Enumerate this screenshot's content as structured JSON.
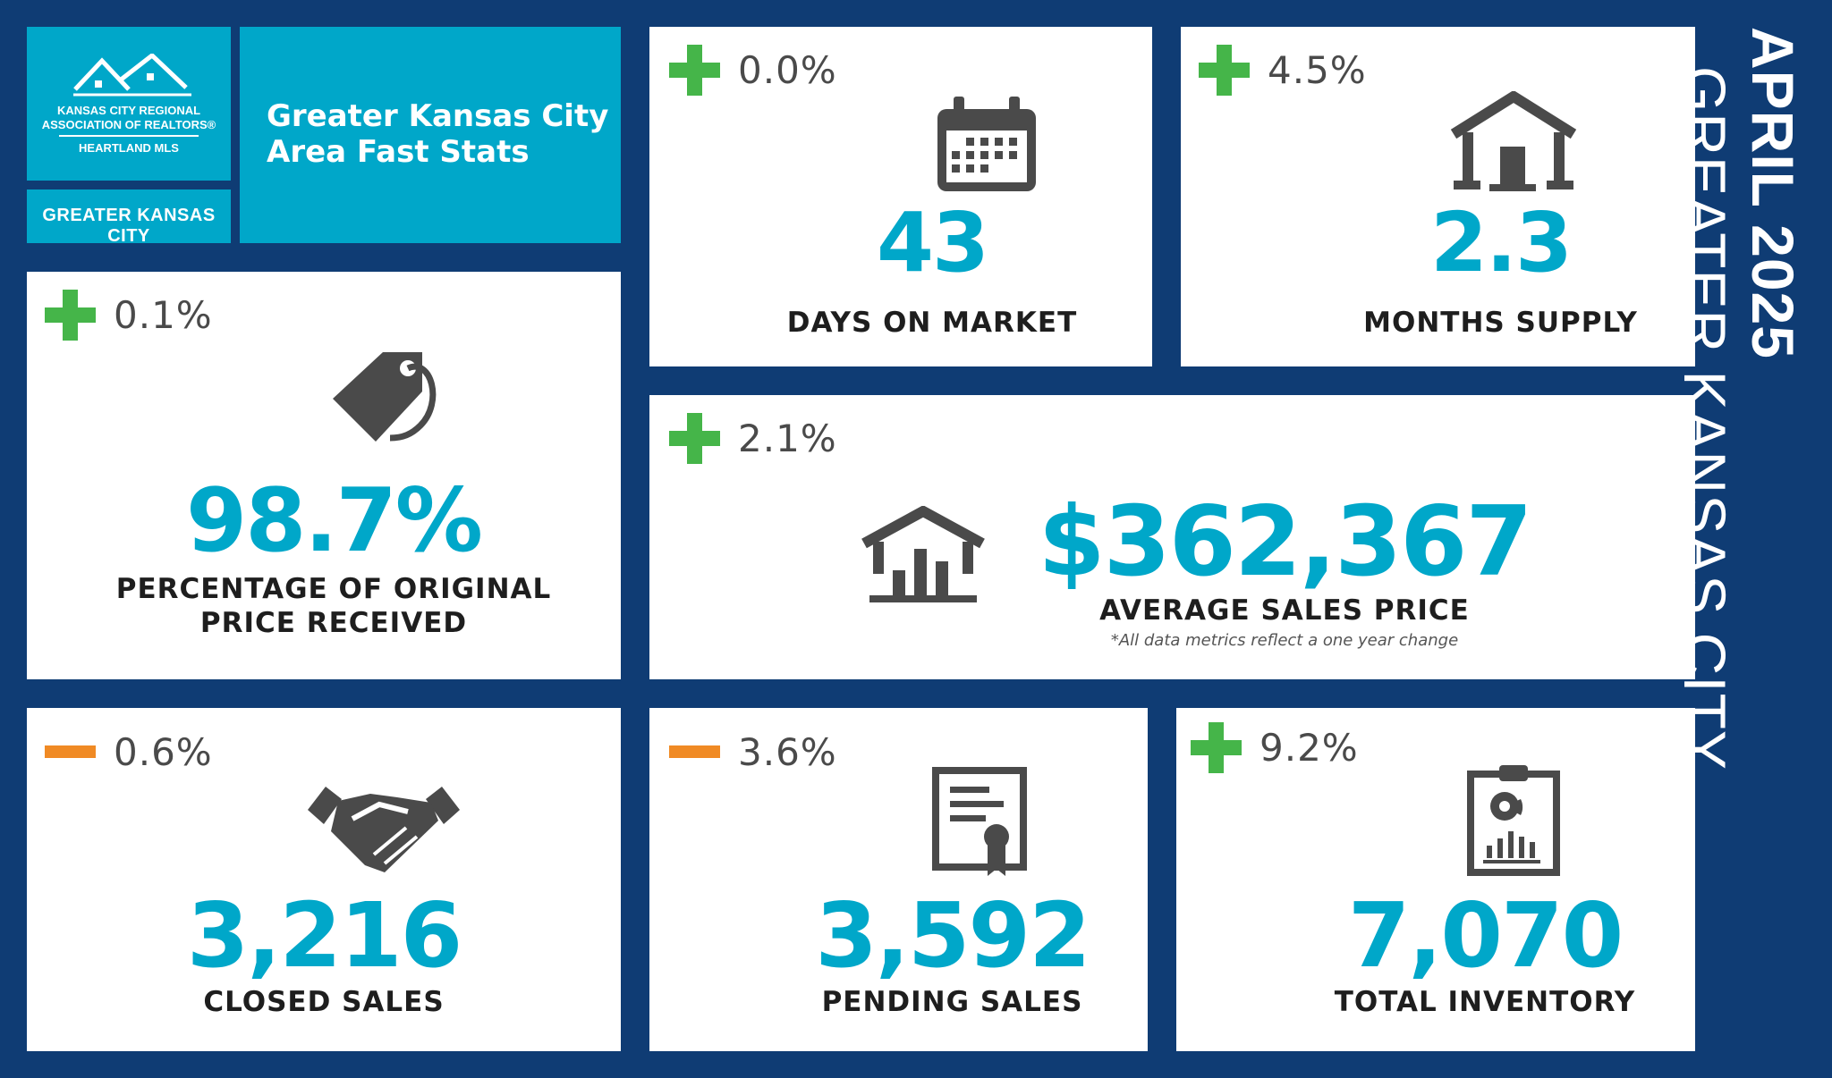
{
  "header": {
    "logo": {
      "line1": "KANSAS CITY REGIONAL",
      "line2": "ASSOCIATION OF REALTORS®",
      "line3": "HEARTLAND MLS"
    },
    "region_tab": "GREATER KANSAS CITY",
    "title_line1": "Greater Kansas City",
    "title_line2": "Area Fast Stats"
  },
  "side_title": {
    "bold": "APRIL 2025",
    "light": "GREATER KANSAS CITY"
  },
  "colors": {
    "navy": "#0f3c74",
    "teal": "#00a7c9",
    "plus": "#45b549",
    "minus": "#f08a24"
  },
  "stats": {
    "days_on_market": {
      "sign": "plus",
      "change": "0.0%",
      "value": "43",
      "label": "DAYS ON MARKET",
      "icon": "calendar-icon"
    },
    "months_supply": {
      "sign": "plus",
      "change": "4.5%",
      "value": "2.3",
      "label": "MONTHS SUPPLY",
      "icon": "house-icon"
    },
    "pct_original_price": {
      "sign": "plus",
      "change": "0.1%",
      "value": "98.7%",
      "label_line1": "PERCENTAGE OF ORIGINAL",
      "label_line2": "PRICE RECEIVED",
      "icon": "price-tag-icon"
    },
    "avg_sales_price": {
      "sign": "plus",
      "change": "2.1%",
      "value": "$362,367",
      "label": "AVERAGE SALES PRICE",
      "note": "*All data metrics reflect a one year change",
      "icon": "house-chart-icon"
    },
    "closed_sales": {
      "sign": "minus",
      "change": "0.6%",
      "value": "3,216",
      "label": "CLOSED SALES",
      "icon": "handshake-icon"
    },
    "pending_sales": {
      "sign": "minus",
      "change": "3.6%",
      "value": "3,592",
      "label": "PENDING SALES",
      "icon": "certificate-icon"
    },
    "total_inventory": {
      "sign": "plus",
      "change": "9.2%",
      "value": "7,070",
      "label": "TOTAL INVENTORY",
      "icon": "clipboard-chart-icon"
    }
  }
}
